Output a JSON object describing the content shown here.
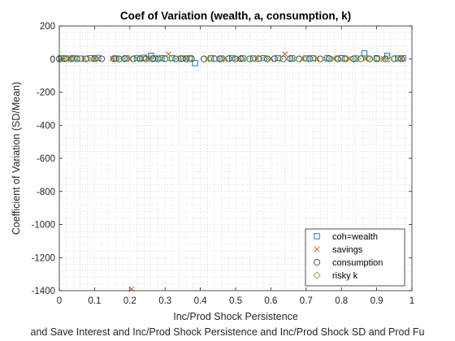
{
  "chart_data": {
    "type": "scatter",
    "title": "Coef of Variation (wealth, a, consumption, k)",
    "xlabel": "Inc/Prod Shock Persistence",
    "ylabel": "Coefficient of Variation (SD/Mean)",
    "bottom_caption": "and Save Interest and Inc/Prod Shock Persistence and Inc/Prod Shock SD and Prod Fu",
    "xlim": [
      0,
      1
    ],
    "ylim": [
      -1400,
      200
    ],
    "xticks": [
      0,
      0.1,
      0.2,
      0.3,
      0.4,
      0.5,
      0.6,
      0.7,
      0.8,
      0.9,
      1
    ],
    "xtick_labels": [
      "0",
      "0.1",
      "0.2",
      "0.3",
      "0.4",
      "0.5",
      "0.6",
      "0.7",
      "0.8",
      "0.9",
      "1"
    ],
    "yticks": [
      200,
      0,
      -200,
      -400,
      -600,
      -800,
      -1000,
      -1200,
      -1400
    ],
    "ytick_labels": [
      "200",
      "0",
      "-200",
      "-400",
      "-600",
      "-800",
      "-1000",
      "-1200",
      "-1400"
    ],
    "grid": "minor dotted",
    "legend_position": "bottom-right",
    "series": [
      {
        "name": "coh=wealth",
        "marker": "square",
        "color": "#0072BD",
        "x": [
          0.005,
          0.02,
          0.04,
          0.06,
          0.09,
          0.11,
          0.16,
          0.19,
          0.22,
          0.24,
          0.26,
          0.27,
          0.29,
          0.32,
          0.35,
          0.37,
          0.385,
          0.43,
          0.46,
          0.49,
          0.52,
          0.55,
          0.58,
          0.62,
          0.66,
          0.7,
          0.72,
          0.76,
          0.8,
          0.84,
          0.865,
          0.9,
          0.93,
          0.96,
          0.975
        ],
        "y": [
          5,
          4,
          6,
          3,
          5,
          7,
          4,
          5,
          6,
          8,
          20,
          4,
          5,
          6,
          4,
          5,
          -25,
          5,
          4,
          6,
          5,
          4,
          5,
          6,
          5,
          4,
          5,
          6,
          5,
          4,
          35,
          5,
          20,
          4,
          5
        ]
      },
      {
        "name": "savings",
        "marker": "x",
        "color": "#D95319",
        "x": [
          0.01,
          0.03,
          0.07,
          0.1,
          0.15,
          0.2,
          0.205,
          0.25,
          0.31,
          0.36,
          0.42,
          0.47,
          0.51,
          0.56,
          0.6,
          0.64,
          0.69,
          0.73,
          0.78,
          0.82,
          0.87,
          0.92,
          0.97
        ],
        "y": [
          2,
          3,
          1,
          2,
          4,
          2,
          -1390,
          5,
          30,
          3,
          2,
          4,
          3,
          2,
          5,
          30,
          3,
          4,
          2,
          3,
          4,
          2,
          3
        ]
      },
      {
        "name": "consumption",
        "marker": "circle",
        "color": "#444444",
        "x": [
          0.0,
          0.015,
          0.035,
          0.05,
          0.075,
          0.1,
          0.12,
          0.155,
          0.17,
          0.185,
          0.21,
          0.23,
          0.245,
          0.265,
          0.28,
          0.3,
          0.33,
          0.345,
          0.36,
          0.375,
          0.41,
          0.44,
          0.455,
          0.48,
          0.5,
          0.515,
          0.54,
          0.565,
          0.59,
          0.61,
          0.635,
          0.655,
          0.68,
          0.71,
          0.74,
          0.765,
          0.79,
          0.81,
          0.835,
          0.855,
          0.88,
          0.9,
          0.925,
          0.95,
          0.97
        ],
        "y": [
          1,
          2,
          1,
          2,
          1,
          2,
          1,
          2,
          1,
          2,
          1,
          2,
          1,
          2,
          1,
          2,
          1,
          2,
          1,
          2,
          1,
          2,
          1,
          2,
          1,
          2,
          1,
          2,
          1,
          2,
          1,
          2,
          1,
          2,
          1,
          2,
          1,
          2,
          1,
          2,
          1,
          2,
          1,
          2,
          1
        ]
      },
      {
        "name": "risky k",
        "marker": "diamond",
        "color": "#77AC30",
        "x": [
          0.008,
          0.025,
          0.045,
          0.08,
          0.105,
          0.165,
          0.195,
          0.225,
          0.255,
          0.285,
          0.315,
          0.34,
          0.37,
          0.425,
          0.465,
          0.495,
          0.525,
          0.555,
          0.585,
          0.625,
          0.665,
          0.695,
          0.725,
          0.755,
          0.785,
          0.815,
          0.845,
          0.875,
          0.905,
          0.935,
          0.965
        ],
        "y": [
          3,
          2,
          4,
          3,
          2,
          3,
          4,
          2,
          3,
          4,
          2,
          3,
          4,
          2,
          3,
          4,
          2,
          3,
          4,
          2,
          3,
          4,
          2,
          3,
          4,
          2,
          3,
          4,
          2,
          3,
          4
        ]
      }
    ]
  }
}
